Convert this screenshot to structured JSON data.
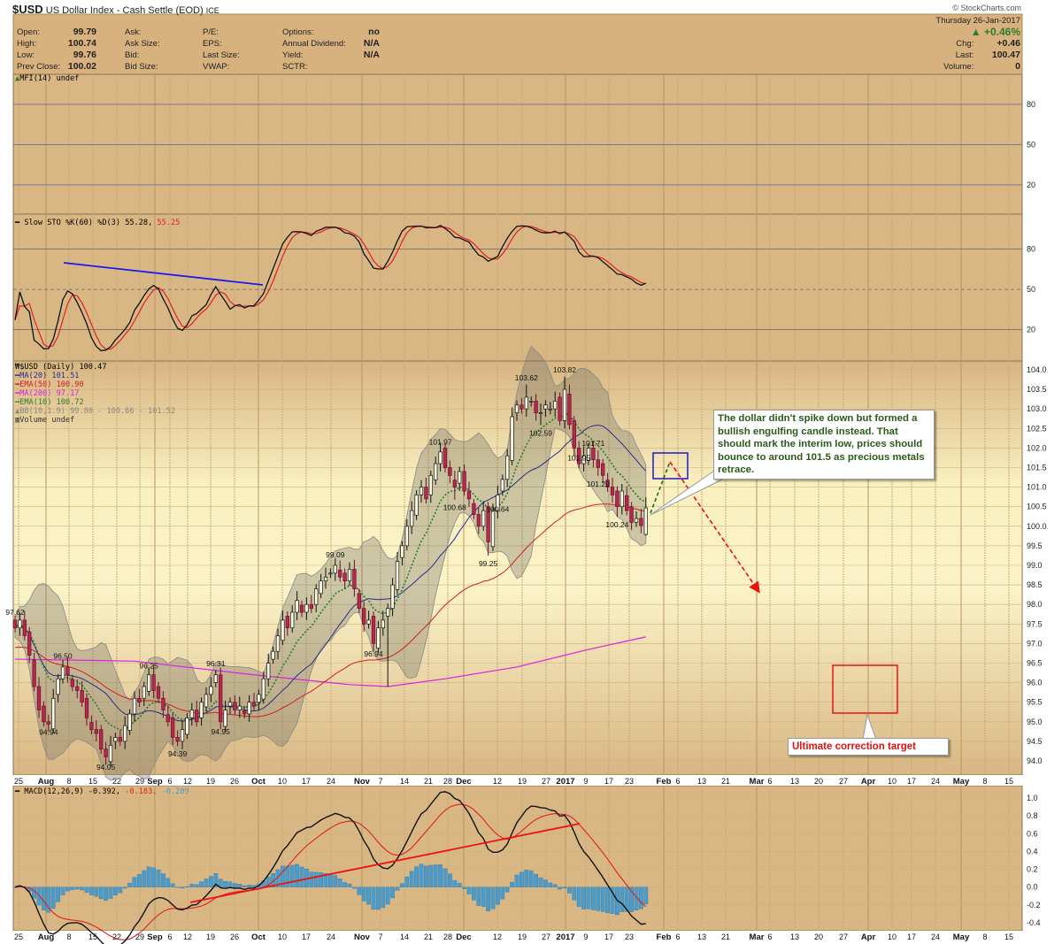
{
  "header": {
    "symbol": "$USD",
    "name": "US Dollar Index - Cash Settle (EOD)",
    "exchange": "ICE",
    "copyright": "© StockCharts.com",
    "date": "Thursday  26-Jan-2017",
    "pct_change": "▲ +0.46%",
    "stats_col1": [
      {
        "label": "Open:",
        "value": "99.79"
      },
      {
        "label": "High:",
        "value": "100.74"
      },
      {
        "label": "Low:",
        "value": "99.76"
      },
      {
        "label": "Prev Close:",
        "value": "100.02"
      }
    ],
    "stats_col2": [
      {
        "label": "Ask:",
        "value": ""
      },
      {
        "label": "Ask Size:",
        "value": ""
      },
      {
        "label": "Bid:",
        "value": ""
      },
      {
        "label": "Bid Size:",
        "value": ""
      }
    ],
    "stats_col3": [
      {
        "label": "P/E:",
        "value": ""
      },
      {
        "label": "EPS:",
        "value": ""
      },
      {
        "label": "Last Size:",
        "value": ""
      },
      {
        "label": "VWAP:",
        "value": ""
      }
    ],
    "stats_col4": [
      {
        "label": "Options:",
        "value": "no"
      },
      {
        "label": "Annual Dividend:",
        "value": "N/A"
      },
      {
        "label": "Yield:",
        "value": "N/A"
      },
      {
        "label": "SCTR:",
        "value": ""
      }
    ],
    "stats_right": [
      {
        "label": "Chg:",
        "value": "+0.46"
      },
      {
        "label": "Last:",
        "value": "100.47"
      },
      {
        "label": "Volume:",
        "value": "0"
      }
    ]
  },
  "legends": {
    "mfi": "MFI(14) undef",
    "sto_label": "Slow STO %K(60) %D(3) 55.28,",
    "sto_d": " 55.25",
    "price": "$USD (Daily) 100.47",
    "ma20": "MA(20) 101.51",
    "ema50": "EMA(50) 100.90",
    "ma200": "MA(200) 97.17",
    "ema10": "EMA(10) 100.72",
    "bb": "BB(10,1.9) 99.80 - 100.66 - 101.52",
    "volume": "Volume undef",
    "macd_label": "MACD(12,26,9) -0.392,",
    "macd_signal": " -0.183,",
    "macd_hist": " -0.209"
  },
  "annotations": {
    "note1": "The dollar didn't spike down but formed a bullish engulfing candle instead. That should mark the interim low, prices should bounce to around 101.5 as precious metals retrace.",
    "note2": "Ultimate correction target"
  },
  "colors": {
    "ma20": "#2b2b8c",
    "ema50": "#d02020",
    "ma200": "#e020e0",
    "ema10": "#2a7a2a",
    "down_candle": "#b8284c",
    "macd_hist": "#4a9ccc",
    "trend_blue": "#1a1aee",
    "trend_red": "#ee1111"
  },
  "chart_data": {
    "type": "candlestick",
    "title": "$USD US Dollar Index - Cash Settle (EOD)",
    "x_ticks": [
      "25",
      "Aug",
      "8",
      "15",
      "22",
      "29",
      "Sep",
      "6",
      "12",
      "19",
      "26",
      "Oct",
      "10",
      "17",
      "24",
      "Nov",
      "7",
      "14",
      "21",
      "28",
      "Dec",
      "12",
      "19",
      "27",
      "2017",
      "9",
      "17",
      "23",
      "Feb",
      "6",
      "13",
      "21",
      "Mar",
      "6",
      "13",
      "20",
      "27",
      "Apr",
      "10",
      "17",
      "24",
      "May",
      "8",
      "15"
    ],
    "x_ticks_bold": [
      "Aug",
      "Sep",
      "Oct",
      "Nov",
      "Dec",
      "2017",
      "Feb",
      "Mar",
      "Apr",
      "May"
    ],
    "closes": [
      97.4,
      97.6,
      97.2,
      96.7,
      95.9,
      95.3,
      95.0,
      94.94,
      95.6,
      96.1,
      96.4,
      96.2,
      95.9,
      95.8,
      95.5,
      95.1,
      94.8,
      94.7,
      94.3,
      94.1,
      94.4,
      94.6,
      94.5,
      94.9,
      95.2,
      95.6,
      95.5,
      95.9,
      96.2,
      95.8,
      95.6,
      95.3,
      95.0,
      94.6,
      94.5,
      94.8,
      95.1,
      95.3,
      95.0,
      95.5,
      95.7,
      95.9,
      96.2,
      95.0,
      95.3,
      95.5,
      95.3,
      95.4,
      95.2,
      95.5,
      95.4,
      95.7,
      96.1,
      96.5,
      96.8,
      97.2,
      97.6,
      97.4,
      97.8,
      98.1,
      97.8,
      98.0,
      97.9,
      98.4,
      98.6,
      98.7,
      98.8,
      99.0,
      98.7,
      98.6,
      98.9,
      98.4,
      97.9,
      97.5,
      97.6,
      97.0,
      97.4,
      97.6,
      97.9,
      98.5,
      99.1,
      99.5,
      100.0,
      100.4,
      100.8,
      101.0,
      100.7,
      101.3,
      101.6,
      101.9,
      101.5,
      101.3,
      101.0,
      101.4,
      100.9,
      100.7,
      100.3,
      100.0,
      100.4,
      99.6,
      100.4,
      100.8,
      101.2,
      101.8,
      102.8,
      103.1,
      103.0,
      103.3,
      103.2,
      102.9,
      102.9,
      103.1,
      103.0,
      103.2,
      102.7,
      103.5,
      102.6,
      102.0,
      101.6,
      101.8,
      102.0,
      101.7,
      101.5,
      101.3,
      101.0,
      100.8,
      100.5,
      100.9,
      100.4,
      100.1,
      100.2,
      100.02,
      100.47
    ],
    "last_candle": {
      "open": 99.79,
      "high": 100.74,
      "low": 99.76,
      "close": 100.47
    },
    "wick_overrides": [
      {
        "i": 0,
        "high": 97.62
      },
      {
        "i": 7,
        "low": 94.94
      },
      {
        "i": 10,
        "high": 96.5
      },
      {
        "i": 19,
        "low": 94.05
      },
      {
        "i": 28,
        "high": 96.25
      },
      {
        "i": 34,
        "low": 94.39
      },
      {
        "i": 42,
        "high": 96.31
      },
      {
        "i": 43,
        "low": 94.95
      },
      {
        "i": 67,
        "high": 99.09
      },
      {
        "i": 75,
        "low": 96.94
      },
      {
        "i": 78,
        "low": 95.9
      },
      {
        "i": 89,
        "high": 101.97
      },
      {
        "i": 92,
        "low": 100.68
      },
      {
        "i": 99,
        "low": 99.25
      },
      {
        "i": 101,
        "low": 100.64
      },
      {
        "i": 107,
        "high": 103.62
      },
      {
        "i": 110,
        "low": 102.59
      },
      {
        "i": 115,
        "high": 103.82
      },
      {
        "i": 118,
        "low": 101.95
      },
      {
        "i": 121,
        "high": 101.71
      },
      {
        "i": 122,
        "low": 101.29
      },
      {
        "i": 126,
        "low": 100.24
      }
    ],
    "price_labels": [
      {
        "text": "97.62",
        "i": 0,
        "price": 97.62,
        "pos": "above"
      },
      {
        "text": "94.94",
        "i": 7,
        "price": 94.94,
        "pos": "below"
      },
      {
        "text": "96.50",
        "i": 10,
        "price": 96.5,
        "pos": "above"
      },
      {
        "text": "94.05",
        "i": 19,
        "price": 94.05,
        "pos": "below"
      },
      {
        "text": "96.25",
        "i": 28,
        "price": 96.25,
        "pos": "above"
      },
      {
        "text": "94.39",
        "i": 34,
        "price": 94.39,
        "pos": "below"
      },
      {
        "text": "96.31",
        "i": 42,
        "price": 96.31,
        "pos": "above"
      },
      {
        "text": "94.95",
        "i": 43,
        "price": 94.95,
        "pos": "below"
      },
      {
        "text": "99.09",
        "i": 67,
        "price": 99.09,
        "pos": "above"
      },
      {
        "text": "96.94",
        "i": 75,
        "price": 96.94,
        "pos": "below"
      },
      {
        "text": "101.97",
        "i": 89,
        "price": 101.97,
        "pos": "above"
      },
      {
        "text": "100.68",
        "i": 92,
        "price": 100.68,
        "pos": "below"
      },
      {
        "text": "99.25",
        "i": 99,
        "price": 99.25,
        "pos": "below"
      },
      {
        "text": "100.64",
        "i": 101,
        "price": 100.64,
        "pos": "below"
      },
      {
        "text": "103.62",
        "i": 107,
        "price": 103.62,
        "pos": "above"
      },
      {
        "text": "102.59",
        "i": 110,
        "price": 102.59,
        "pos": "below"
      },
      {
        "text": "103.82",
        "i": 115,
        "price": 103.82,
        "pos": "above"
      },
      {
        "text": "101.95",
        "i": 118,
        "price": 101.95,
        "pos": "below"
      },
      {
        "text": "101.71",
        "i": 121,
        "price": 101.71,
        "pos": "above"
      },
      {
        "text": "101.29",
        "i": 122,
        "price": 101.29,
        "pos": "below"
      },
      {
        "text": "100.24",
        "i": 126,
        "price": 100.24,
        "pos": "below"
      }
    ],
    "ma200_points": [
      [
        0,
        96.6
      ],
      [
        25,
        96.55
      ],
      [
        50,
        96.2
      ],
      [
        70,
        95.95
      ],
      [
        78,
        95.9
      ],
      [
        90,
        96.1
      ],
      [
        105,
        96.4
      ],
      [
        120,
        96.85
      ],
      [
        132,
        97.17
      ]
    ],
    "price_ylim": [
      94.0,
      104.0
    ],
    "price_ticks": [
      "104.0",
      "103.5",
      "103.0",
      "102.5",
      "102.0",
      "101.5",
      "101.0",
      "100.5",
      "100.0",
      "99.5",
      "99.0",
      "98.5",
      "98.0",
      "97.5",
      "97.0",
      "96.5",
      "96.0",
      "95.5",
      "95.0",
      "94.5",
      "94.0"
    ],
    "mfi_ticks": [
      "80",
      "50",
      "20"
    ],
    "sto_ticks": [
      "80",
      "50",
      "20"
    ],
    "macd_ylim": [
      -0.4,
      1.0
    ],
    "macd_ticks": [
      "1.0",
      "0.8",
      "0.6",
      "0.4",
      "0.2",
      "0.0",
      "-0.2",
      "-0.4"
    ],
    "projection": {
      "target_bounce": 101.5,
      "correction_zone": [
        95.0,
        96.4
      ]
    }
  }
}
